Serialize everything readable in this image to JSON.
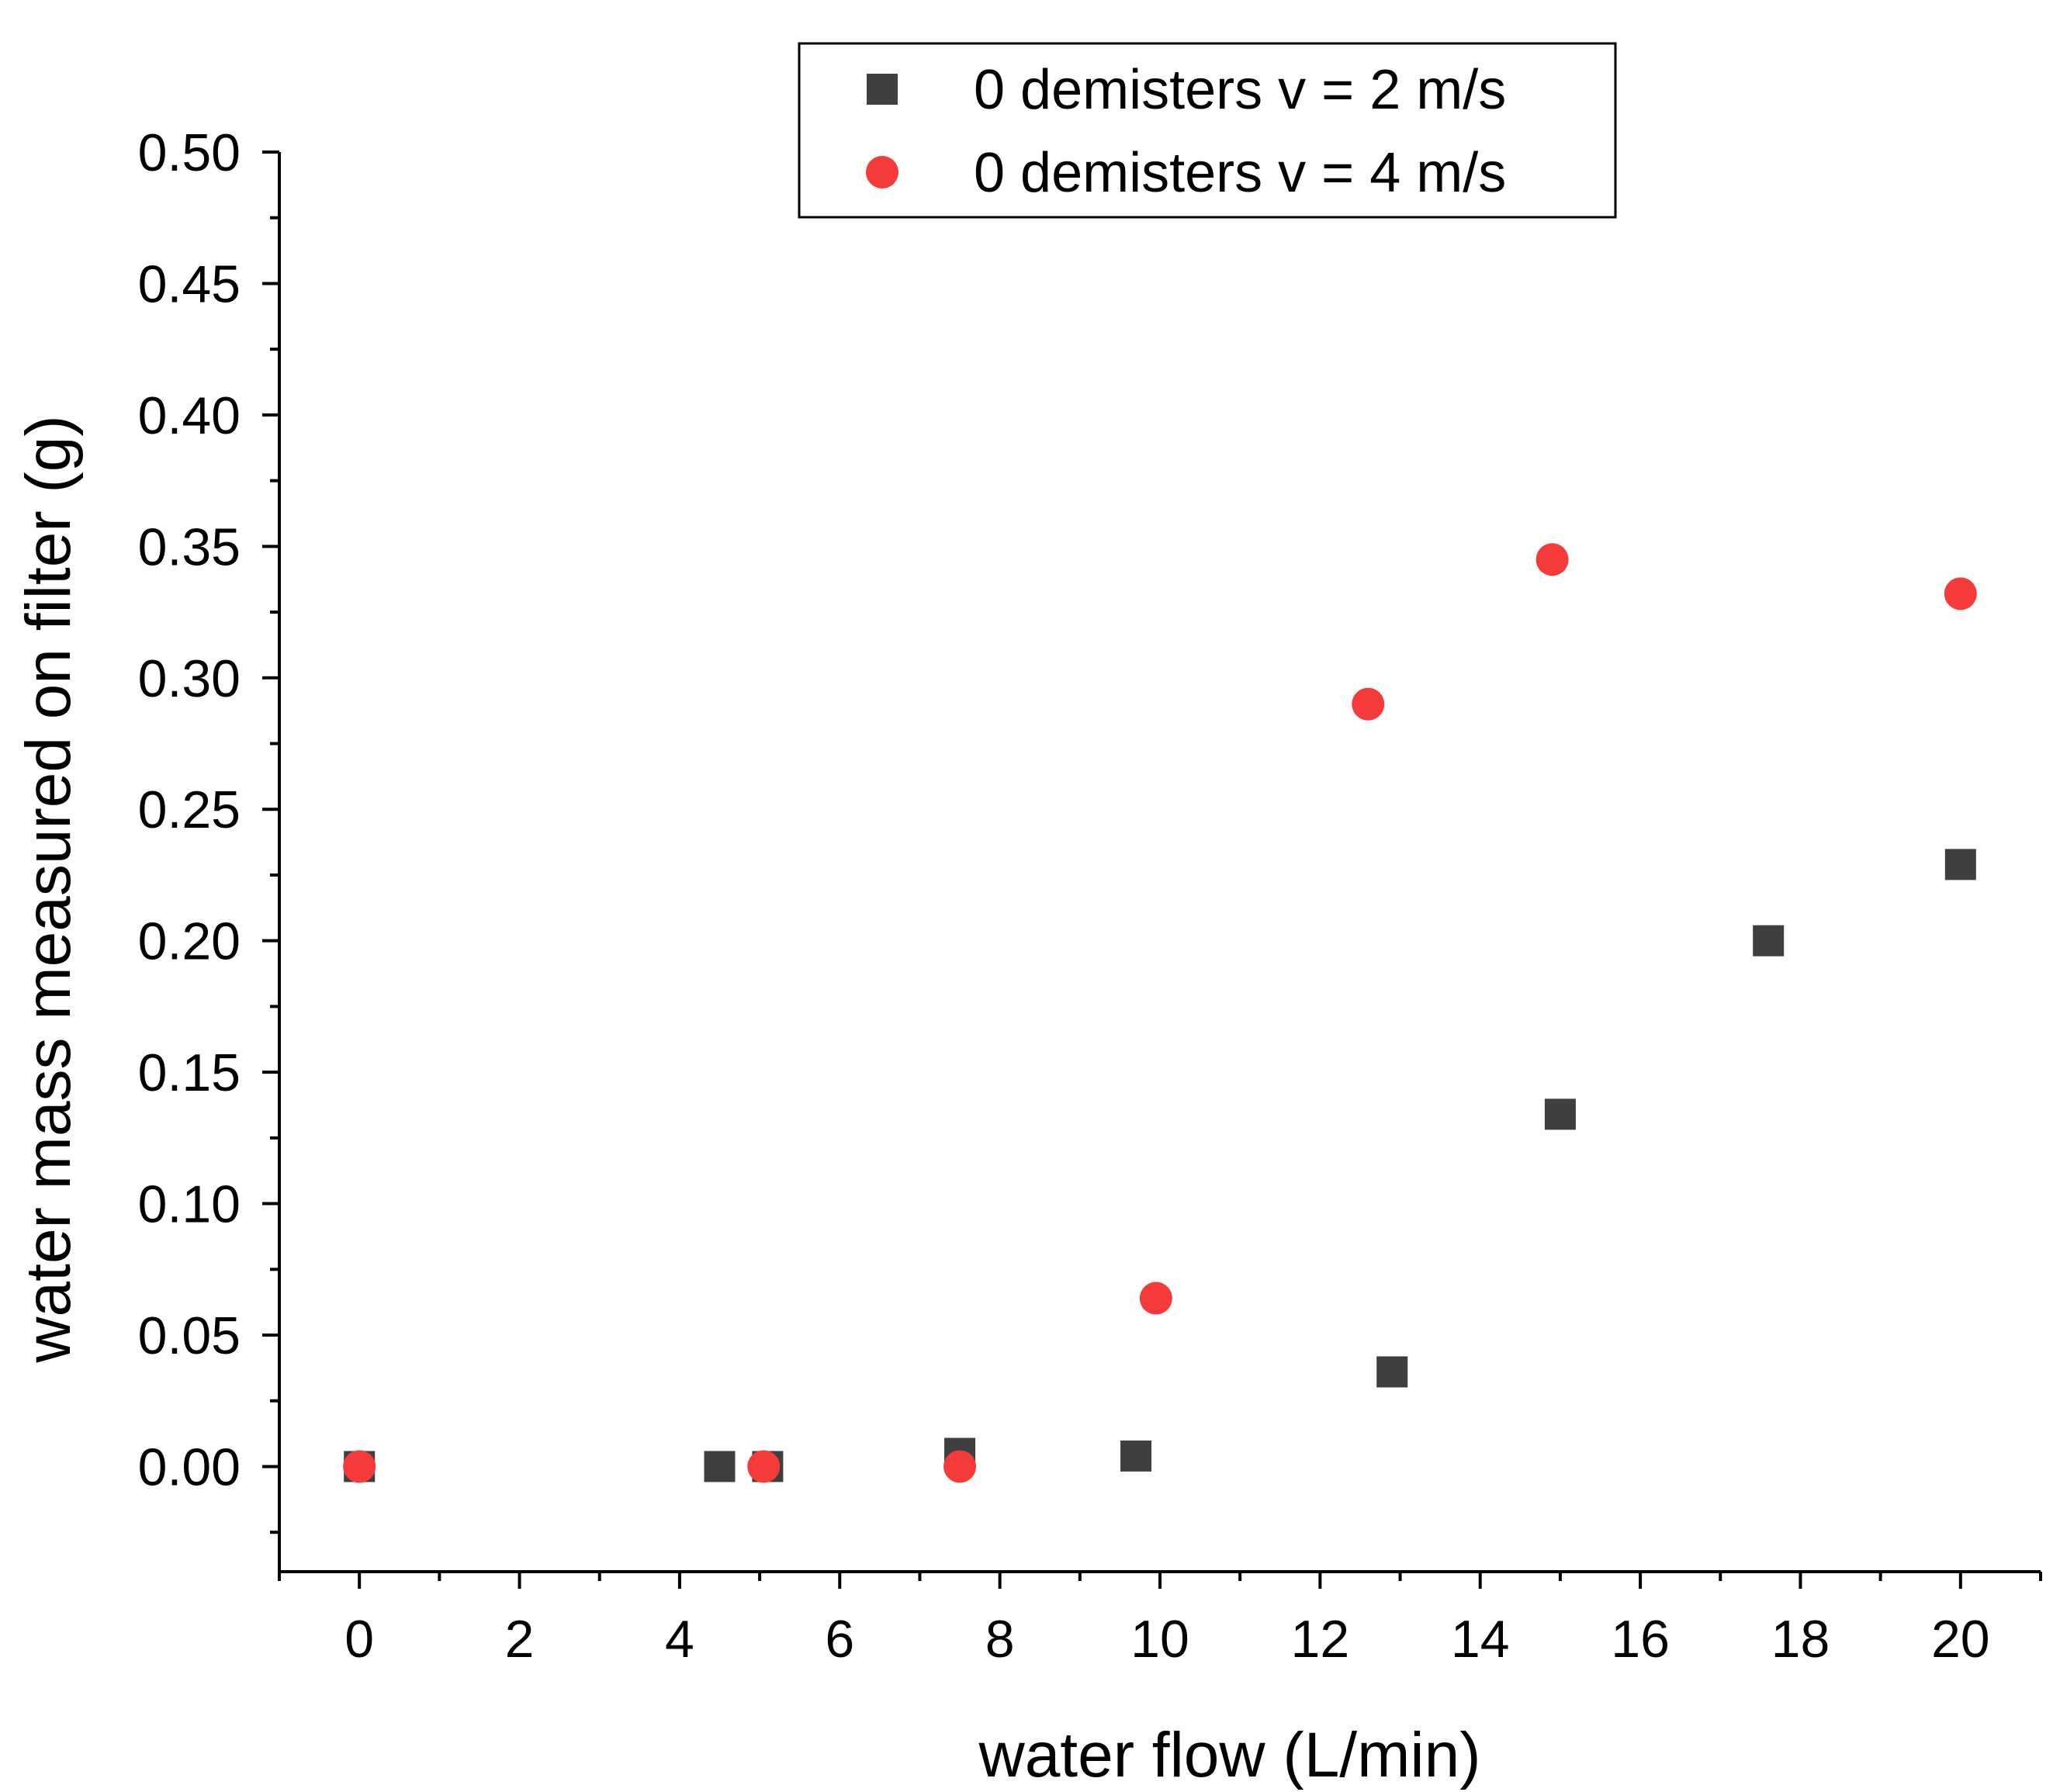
{
  "chart_data": {
    "type": "scatter",
    "title": "",
    "xlabel": "water flow (L/min)",
    "ylabel": "water mass measured on filter (g)",
    "xlim": [
      -1,
      21
    ],
    "ylim": [
      -0.04,
      0.5
    ],
    "x_ticks": [
      0,
      2,
      4,
      6,
      8,
      10,
      12,
      14,
      16,
      18,
      20
    ],
    "x_tick_labels": [
      "0",
      "2",
      "4",
      "6",
      "8",
      "10",
      "12",
      "14",
      "16",
      "18",
      "20"
    ],
    "y_ticks": [
      0.0,
      0.05,
      0.1,
      0.15,
      0.2,
      0.25,
      0.3,
      0.35,
      0.4,
      0.45,
      0.5
    ],
    "y_tick_labels": [
      "0.00",
      "0.05",
      "0.10",
      "0.15",
      "0.20",
      "0.25",
      "0.30",
      "0.35",
      "0.40",
      "0.45",
      "0.50"
    ],
    "grid": false,
    "legend_position": "top-center",
    "series": [
      {
        "name": "0 demisters v = 2 m/s",
        "marker": "square",
        "color": "#3f3f3f",
        "x": [
          0,
          4.5,
          5.1,
          7.5,
          9.7,
          12.9,
          15.0,
          17.6,
          20.0
        ],
        "y": [
          0.0,
          0.0,
          0.0,
          0.005,
          0.004,
          0.036,
          0.134,
          0.2,
          0.229
        ]
      },
      {
        "name": "0 demisters v = 4 m/s",
        "marker": "circle",
        "color": "#f53a3a",
        "x": [
          0,
          5.05,
          7.5,
          9.95,
          12.6,
          14.9,
          20.0
        ],
        "y": [
          0.0,
          0.0,
          0.0,
          0.064,
          0.29,
          0.345,
          0.332
        ]
      }
    ]
  }
}
